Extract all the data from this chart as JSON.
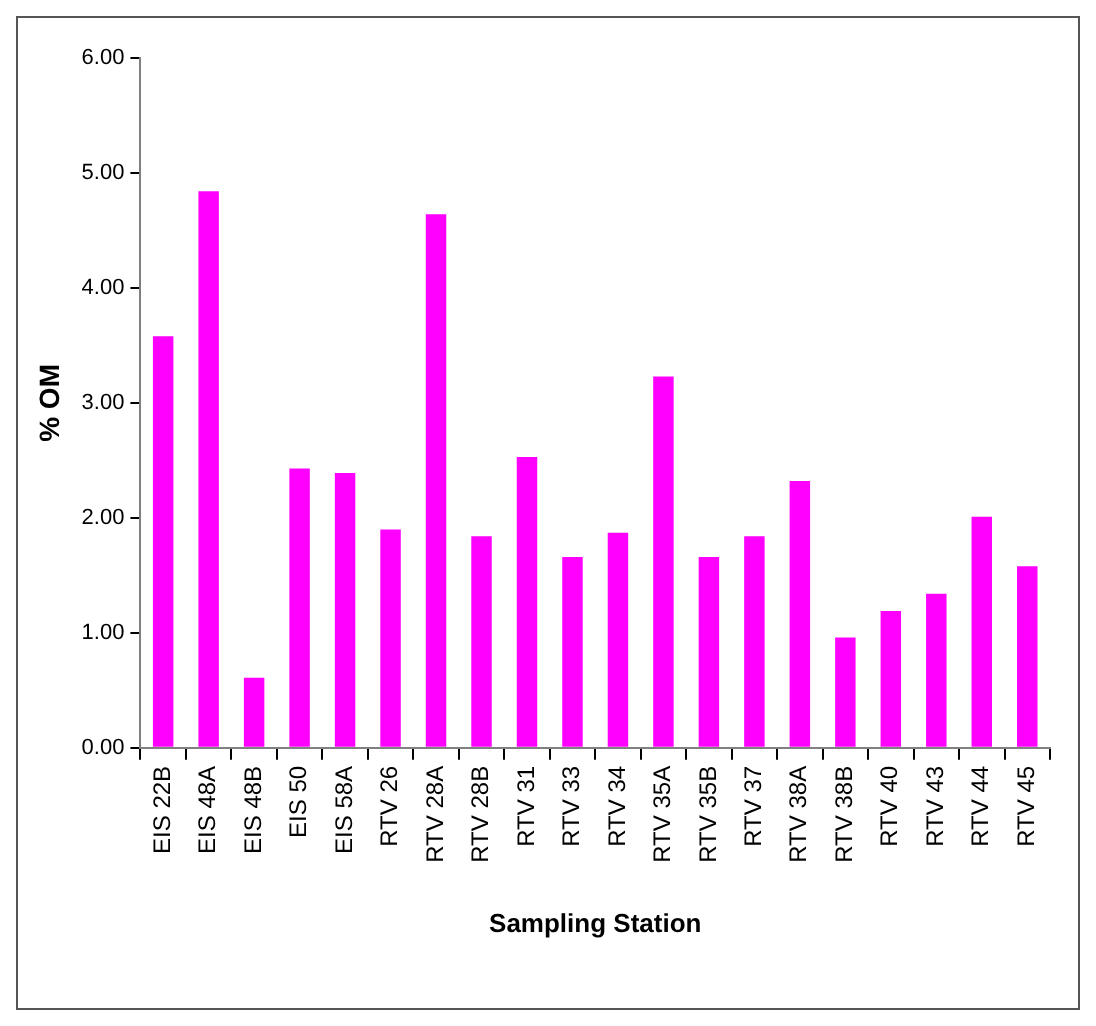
{
  "chart_data": {
    "type": "bar",
    "xlabel": "Sampling Station",
    "ylabel": "% OM",
    "categories": [
      "EIS 22B",
      "EIS 48A",
      "EIS 48B",
      "EIS 50",
      "EIS 58A",
      "RTV 26",
      "RTV 28A",
      "RTV 28B",
      "RTV 31",
      "RTV 33",
      "RTV 34",
      "RTV 35A",
      "RTV 35B",
      "RTV 37",
      "RTV 38A",
      "RTV 38B",
      "RTV 40",
      "RTV 43",
      "RTV 44",
      "RTV 45"
    ],
    "values": [
      3.58,
      4.84,
      0.61,
      2.43,
      2.39,
      1.9,
      4.64,
      1.84,
      2.53,
      1.66,
      1.87,
      3.23,
      1.66,
      1.84,
      2.32,
      0.96,
      1.19,
      1.34,
      2.01,
      1.58
    ],
    "color": "#ff00ff",
    "ylim": [
      0,
      6
    ],
    "yticks": [
      {
        "value": 0,
        "label": "0.00"
      },
      {
        "value": 1,
        "label": "1.00"
      },
      {
        "value": 2,
        "label": "2.00"
      },
      {
        "value": 3,
        "label": "3.00"
      },
      {
        "value": 4,
        "label": "4.00"
      },
      {
        "value": 5,
        "label": "5.00"
      },
      {
        "value": 6,
        "label": "6.00"
      }
    ],
    "grid": false,
    "legend": false
  }
}
